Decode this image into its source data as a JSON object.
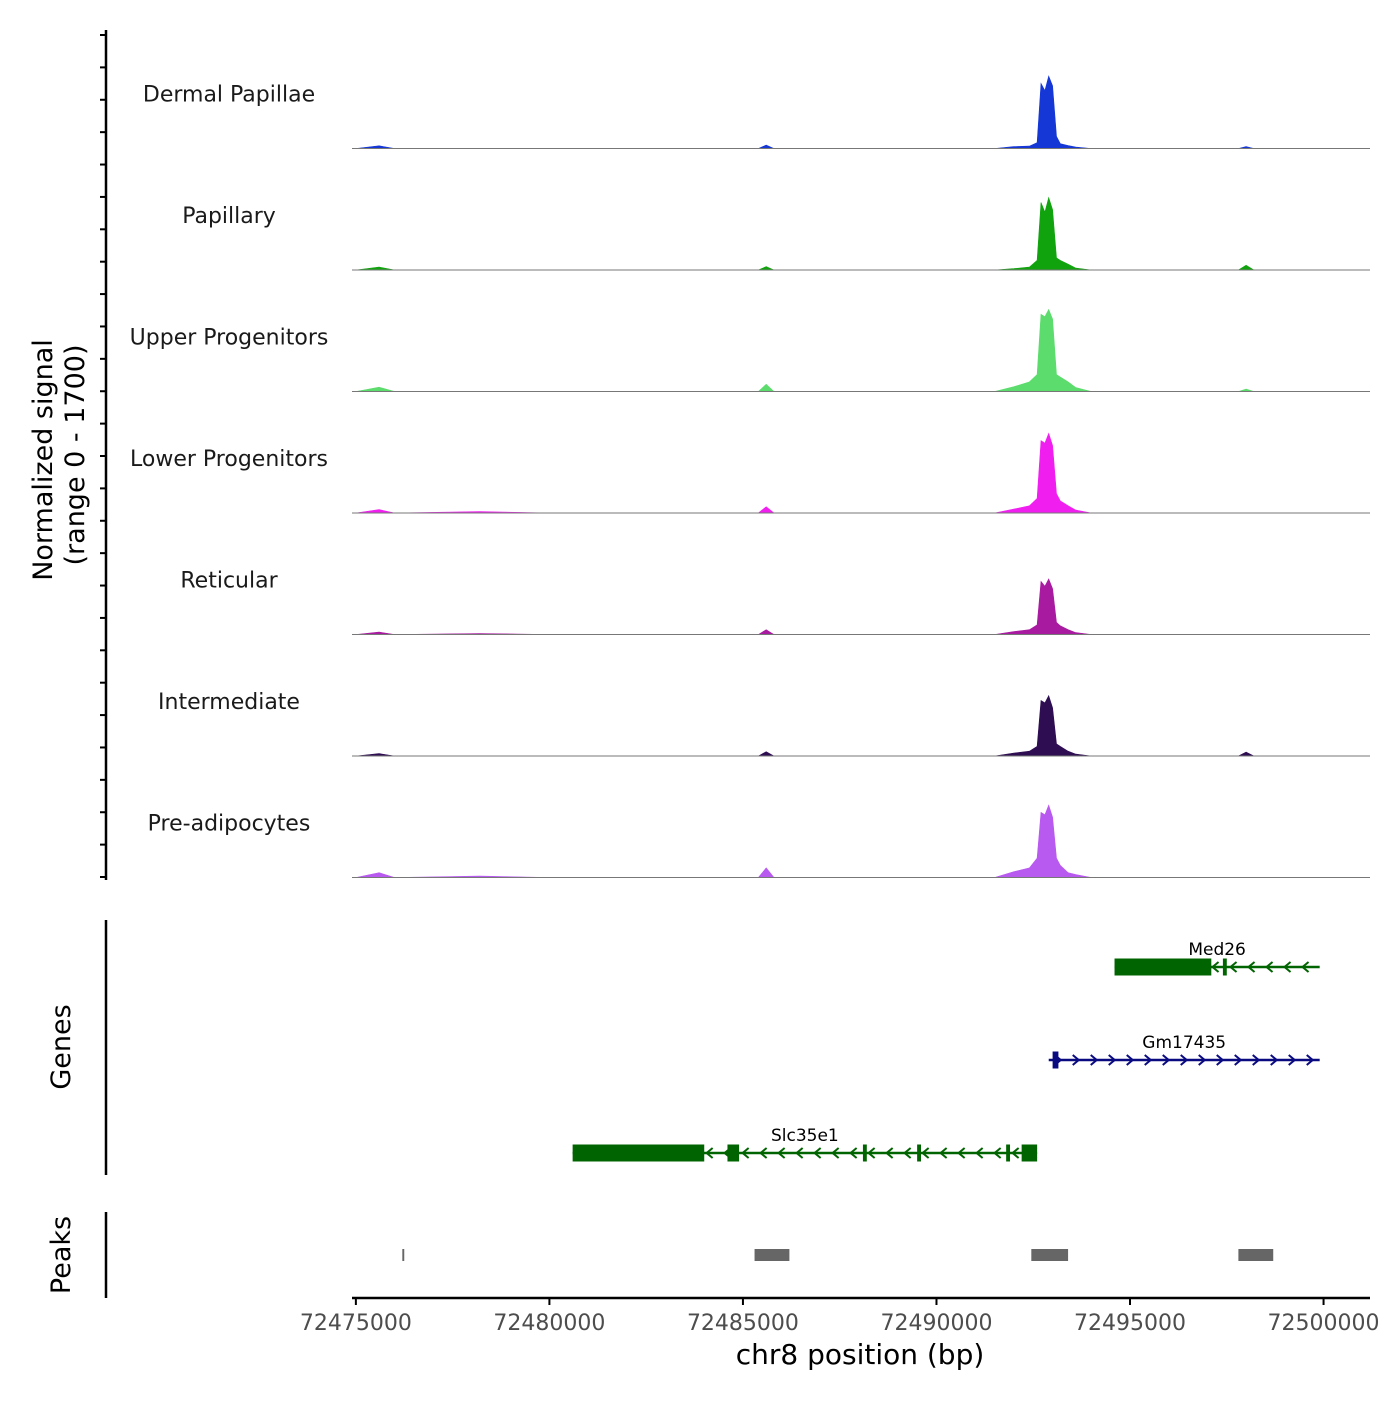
{
  "chart_data": {
    "type": "area",
    "title": "",
    "ylabel_line1": "Normalized signal",
    "ylabel_line2": "(range 0 - 1700)",
    "yrange": [
      0,
      1700
    ],
    "xlabel": "chr8 position (bp)",
    "xlim": [
      72474900,
      72501200
    ],
    "xticks": [
      72475000,
      72480000,
      72485000,
      72490000,
      72495000,
      72500000
    ],
    "xtick_labels": [
      "72475000",
      "72480000",
      "72485000",
      "72490000",
      "72495000",
      "72500000"
    ],
    "x": [
      72475000,
      72475600,
      72476000,
      72478200,
      72480000,
      72484500,
      72485400,
      72485600,
      72485800,
      72487000,
      72490000,
      72491500,
      72492000,
      72492400,
      72492600,
      72492700,
      72492800,
      72492900,
      72493000,
      72493100,
      72493200,
      72493400,
      72493600,
      72494000,
      72496000,
      72497800,
      72498000,
      72498200,
      72501000
    ],
    "series": [
      {
        "name": "Dermal Papillae",
        "color": "#1437d6",
        "values": [
          0,
          55,
          0,
          0,
          0,
          0,
          0,
          70,
          0,
          0,
          0,
          0,
          40,
          50,
          120,
          1350,
          1200,
          1500,
          1300,
          250,
          100,
          60,
          30,
          0,
          0,
          0,
          40,
          0,
          0
        ]
      },
      {
        "name": "Papillary",
        "color": "#11a30e",
        "values": [
          0,
          60,
          0,
          0,
          0,
          0,
          0,
          70,
          0,
          0,
          0,
          0,
          30,
          60,
          200,
          1400,
          1200,
          1500,
          1250,
          250,
          200,
          120,
          40,
          0,
          0,
          0,
          100,
          0,
          0
        ]
      },
      {
        "name": "Upper Progenitors",
        "color": "#5cdc6c",
        "values": [
          0,
          90,
          0,
          0,
          0,
          0,
          0,
          150,
          0,
          0,
          0,
          0,
          100,
          200,
          350,
          1600,
          1550,
          1700,
          1500,
          350,
          300,
          200,
          80,
          0,
          0,
          0,
          50,
          0,
          0
        ]
      },
      {
        "name": "Lower Progenitors",
        "color": "#f01ff0",
        "values": [
          0,
          70,
          0,
          30,
          0,
          0,
          0,
          130,
          0,
          0,
          0,
          0,
          80,
          150,
          300,
          1500,
          1450,
          1650,
          1400,
          400,
          250,
          150,
          60,
          0,
          0,
          0,
          0,
          0,
          0
        ]
      },
      {
        "name": "Reticular",
        "color": "#a81aa0",
        "values": [
          0,
          50,
          0,
          20,
          0,
          0,
          0,
          100,
          0,
          0,
          0,
          0,
          60,
          100,
          200,
          1100,
          1000,
          1150,
          950,
          250,
          180,
          100,
          40,
          0,
          0,
          0,
          0,
          0,
          0
        ]
      },
      {
        "name": "Intermediate",
        "color": "#2e0d52",
        "values": [
          0,
          50,
          0,
          0,
          0,
          0,
          0,
          90,
          0,
          0,
          0,
          0,
          60,
          100,
          200,
          1150,
          1100,
          1250,
          1000,
          250,
          200,
          100,
          40,
          0,
          0,
          0,
          80,
          0,
          0
        ]
      },
      {
        "name": "Pre-adipocytes",
        "color": "#b859f0",
        "values": [
          0,
          100,
          0,
          30,
          0,
          0,
          0,
          200,
          0,
          0,
          0,
          0,
          120,
          200,
          400,
          1350,
          1300,
          1500,
          1250,
          400,
          250,
          100,
          60,
          0,
          0,
          0,
          0,
          0,
          0
        ]
      }
    ],
    "genes_label": "Genes",
    "genes": [
      {
        "name": "Med26",
        "strand": "-",
        "start": 72494600,
        "end": 72499900,
        "color": "#006400",
        "row": 0,
        "exons": [
          [
            72494600,
            72497100
          ],
          [
            72497400,
            72497500
          ]
        ]
      },
      {
        "name": "Gm17435",
        "strand": "+",
        "start": 72492900,
        "end": 72499900,
        "color": "#0a0a80",
        "row": 1,
        "exons": [
          [
            72493000,
            72493150
          ]
        ]
      },
      {
        "name": "Slc35e1",
        "strand": "-",
        "start": 72480600,
        "end": 72492600,
        "color": "#006400",
        "row": 2,
        "exons": [
          [
            72480600,
            72484000
          ],
          [
            72484600,
            72484900
          ],
          [
            72488100,
            72488200
          ],
          [
            72489500,
            72489600
          ],
          [
            72491800,
            72491900
          ],
          [
            72492200,
            72492600
          ]
        ]
      }
    ],
    "peaks_label": "Peaks",
    "peaks": [
      [
        72476200,
        72476250
      ],
      [
        72485300,
        72486200
      ],
      [
        72492450,
        72493400
      ],
      [
        72497800,
        72498700
      ]
    ]
  }
}
